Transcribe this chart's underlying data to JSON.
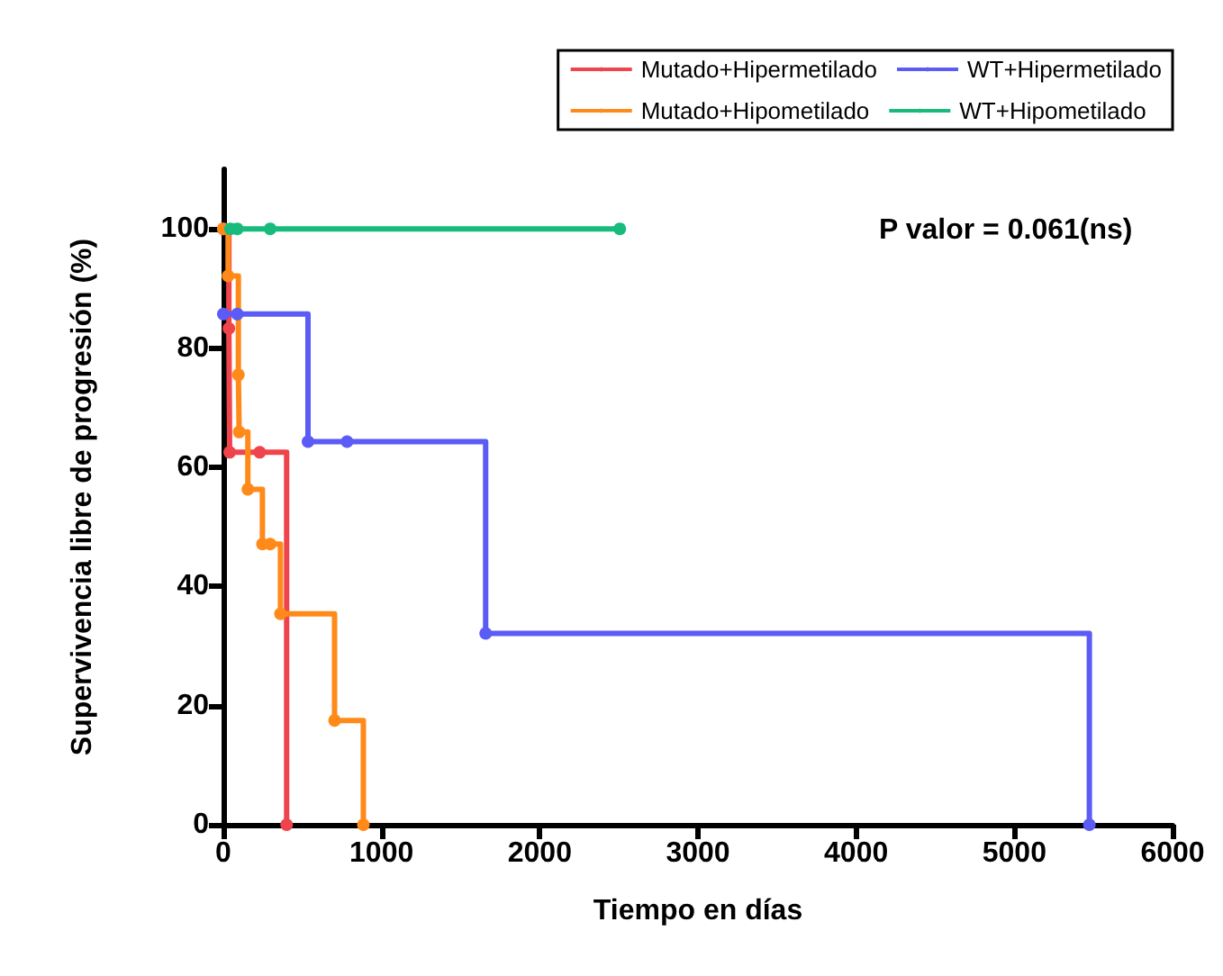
{
  "chart_data": {
    "type": "step",
    "xlabel": "Tiempo en días",
    "ylabel": "Supervivencia libre de progresión (%)",
    "annotations": [
      "P valor = 0.061(ns)"
    ],
    "series": [
      {
        "name": "Mutado+Hipermetilado",
        "color": "#f0444c",
        "x": [
          0,
          35,
          40,
          230,
          400
        ],
        "values": [
          100,
          83.3,
          62.5,
          62.5,
          0
        ]
      },
      {
        "name": "Mutado+Hipometilado",
        "color": "#ff8a1a",
        "x": [
          0,
          30,
          95,
          100,
          155,
          247,
          296,
          361,
          703,
          885
        ],
        "values": [
          100,
          92.1,
          75.5,
          65.9,
          56.3,
          47.1,
          47.1,
          35.4,
          17.5,
          0
        ]
      },
      {
        "name": "WT+Hipermetilado",
        "color": "#5a5cf5",
        "x": [
          0,
          88,
          535,
          782,
          1658,
          5474
        ],
        "values": [
          85.7,
          85.7,
          64.3,
          64.3,
          32.1,
          0
        ]
      },
      {
        "name": "WT+Hipometilado",
        "color": "#18bb7c",
        "x": [
          45,
          88,
          296,
          2506
        ],
        "values": [
          100,
          100,
          100,
          100
        ]
      }
    ],
    "xlim": [
      0,
      6000
    ],
    "xticks": [
      0,
      1000,
      2000,
      3000,
      4000,
      5000,
      6000
    ],
    "ylim": [
      0,
      110
    ],
    "yticks": [
      0,
      20,
      40,
      60,
      80,
      100
    ],
    "grid": false,
    "legend": "top",
    "marker": "circle",
    "line_style": "solid"
  }
}
